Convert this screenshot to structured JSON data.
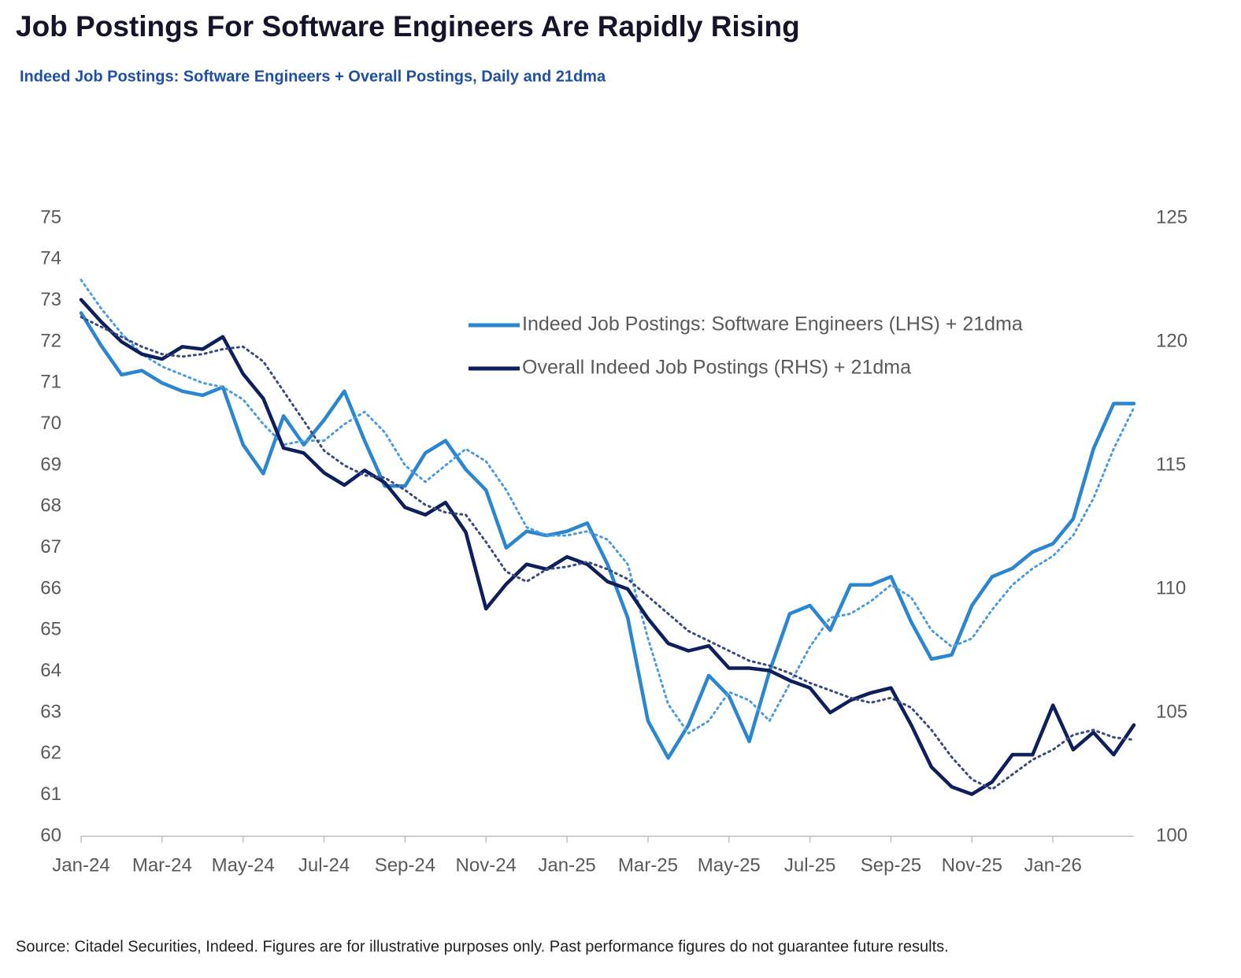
{
  "chart_data": {
    "type": "line",
    "title": "Job Postings For Software Engineers Are Rapidly Rising",
    "subtitle": "Indeed Job Postings: Software Engineers + Overall Postings, Daily and 21dma",
    "source": "Source: Citadel Securities, Indeed. Figures are for illustrative purposes only. Past performance figures do not guarantee future results.",
    "x": [
      0,
      0.5,
      1,
      1.5,
      2,
      2.5,
      3,
      3.5,
      4,
      4.5,
      5,
      5.5,
      6,
      6.5,
      7,
      7.5,
      8,
      8.5,
      9,
      9.5,
      10,
      10.5,
      11,
      11.5,
      12,
      12.5,
      13,
      13.5,
      14,
      14.5,
      15,
      15.5,
      16,
      16.5,
      17,
      17.5,
      18,
      18.5,
      19,
      19.5,
      20,
      20.5,
      21,
      21.5,
      22,
      22.5,
      23,
      23.5,
      24,
      24.5,
      25,
      25.5,
      26
    ],
    "xlim": [
      0,
      26
    ],
    "xticks": [
      {
        "value": 0,
        "label": "Jan-24"
      },
      {
        "value": 2,
        "label": "Mar-24"
      },
      {
        "value": 4,
        "label": "May-24"
      },
      {
        "value": 6,
        "label": "Jul-24"
      },
      {
        "value": 8,
        "label": "Sep-24"
      },
      {
        "value": 10,
        "label": "Nov-24"
      },
      {
        "value": 12,
        "label": "Jan-25"
      },
      {
        "value": 14,
        "label": "Mar-25"
      },
      {
        "value": 16,
        "label": "May-25"
      },
      {
        "value": 18,
        "label": "Jul-25"
      },
      {
        "value": 20,
        "label": "Sep-25"
      },
      {
        "value": 22,
        "label": "Nov-25"
      },
      {
        "value": 24,
        "label": "Jan-26"
      }
    ],
    "ylim": [
      60,
      75
    ],
    "yticks": [
      60,
      61,
      62,
      63,
      64,
      65,
      66,
      67,
      68,
      69,
      70,
      71,
      72,
      73,
      74,
      75
    ],
    "y2lim": [
      100,
      125
    ],
    "y2ticks": [
      100,
      105,
      110,
      115,
      120,
      125
    ],
    "series": [
      {
        "name": "Indeed Job Postings: Software Engineers (LHS) + 21dma",
        "color": "#2a86d1",
        "style": "solid",
        "axis": "y",
        "values": [
          72.7,
          71.9,
          71.2,
          71.3,
          71.0,
          70.8,
          70.7,
          70.9,
          69.5,
          68.8,
          70.2,
          69.5,
          70.1,
          70.8,
          69.6,
          68.5,
          68.5,
          69.3,
          69.6,
          68.9,
          68.4,
          67.0,
          67.4,
          67.3,
          67.4,
          67.6,
          66.6,
          65.3,
          62.8,
          61.9,
          62.7,
          63.9,
          63.4,
          62.3,
          64.0,
          65.4,
          65.6,
          65.0,
          66.1,
          66.1,
          66.3,
          65.2,
          64.3,
          64.4,
          65.6,
          66.3,
          66.5,
          66.9,
          67.1,
          67.7,
          69.4,
          70.5,
          70.5
        ]
      },
      {
        "color": "#4a9be0",
        "style": "dotted",
        "axis": "y",
        "values": [
          73.5,
          72.8,
          72.2,
          71.7,
          71.4,
          71.2,
          71.0,
          70.9,
          70.6,
          70.0,
          69.5,
          69.6,
          69.6,
          70.0,
          70.3,
          69.8,
          69.0,
          68.6,
          69.0,
          69.4,
          69.1,
          68.4,
          67.5,
          67.3,
          67.3,
          67.4,
          67.2,
          66.6,
          64.8,
          63.2,
          62.5,
          62.8,
          63.5,
          63.3,
          62.8,
          63.7,
          64.6,
          65.3,
          65.4,
          65.7,
          66.1,
          65.8,
          65.0,
          64.6,
          64.8,
          65.5,
          66.1,
          66.5,
          66.8,
          67.3,
          68.2,
          69.4,
          70.4
        ]
      },
      {
        "name": "Overall Indeed Job Postings (RHS) + 21dma",
        "color": "#0d1f5c",
        "style": "solid",
        "axis": "y2",
        "values": [
          121.7,
          120.8,
          120.0,
          119.5,
          119.3,
          119.8,
          119.7,
          120.2,
          118.7,
          117.7,
          115.7,
          115.5,
          114.7,
          114.2,
          114.8,
          114.3,
          113.3,
          113.0,
          113.5,
          112.3,
          109.2,
          110.2,
          111.0,
          110.8,
          111.3,
          111.0,
          110.3,
          110.0,
          108.8,
          107.8,
          107.5,
          107.7,
          106.8,
          106.8,
          106.7,
          106.3,
          106.0,
          105.0,
          105.5,
          105.8,
          106.0,
          104.5,
          102.8,
          102.0,
          101.7,
          102.2,
          103.3,
          103.3,
          105.3,
          103.5,
          104.2,
          103.3,
          104.5
        ]
      },
      {
        "color": "#3a4a80",
        "style": "dotted",
        "axis": "y2",
        "values": [
          121.0,
          120.6,
          120.2,
          119.8,
          119.5,
          119.4,
          119.5,
          119.7,
          119.8,
          119.2,
          118.0,
          116.8,
          115.6,
          115.0,
          114.6,
          114.5,
          114.0,
          113.4,
          113.1,
          113.0,
          111.9,
          110.7,
          110.3,
          110.8,
          110.9,
          111.1,
          110.8,
          110.4,
          109.7,
          109.0,
          108.3,
          107.9,
          107.5,
          107.1,
          106.9,
          106.6,
          106.2,
          105.9,
          105.6,
          105.4,
          105.6,
          105.2,
          104.3,
          103.2,
          102.3,
          101.9,
          102.5,
          103.1,
          103.5,
          104.1,
          104.3,
          104.0,
          103.9
        ]
      }
    ]
  }
}
